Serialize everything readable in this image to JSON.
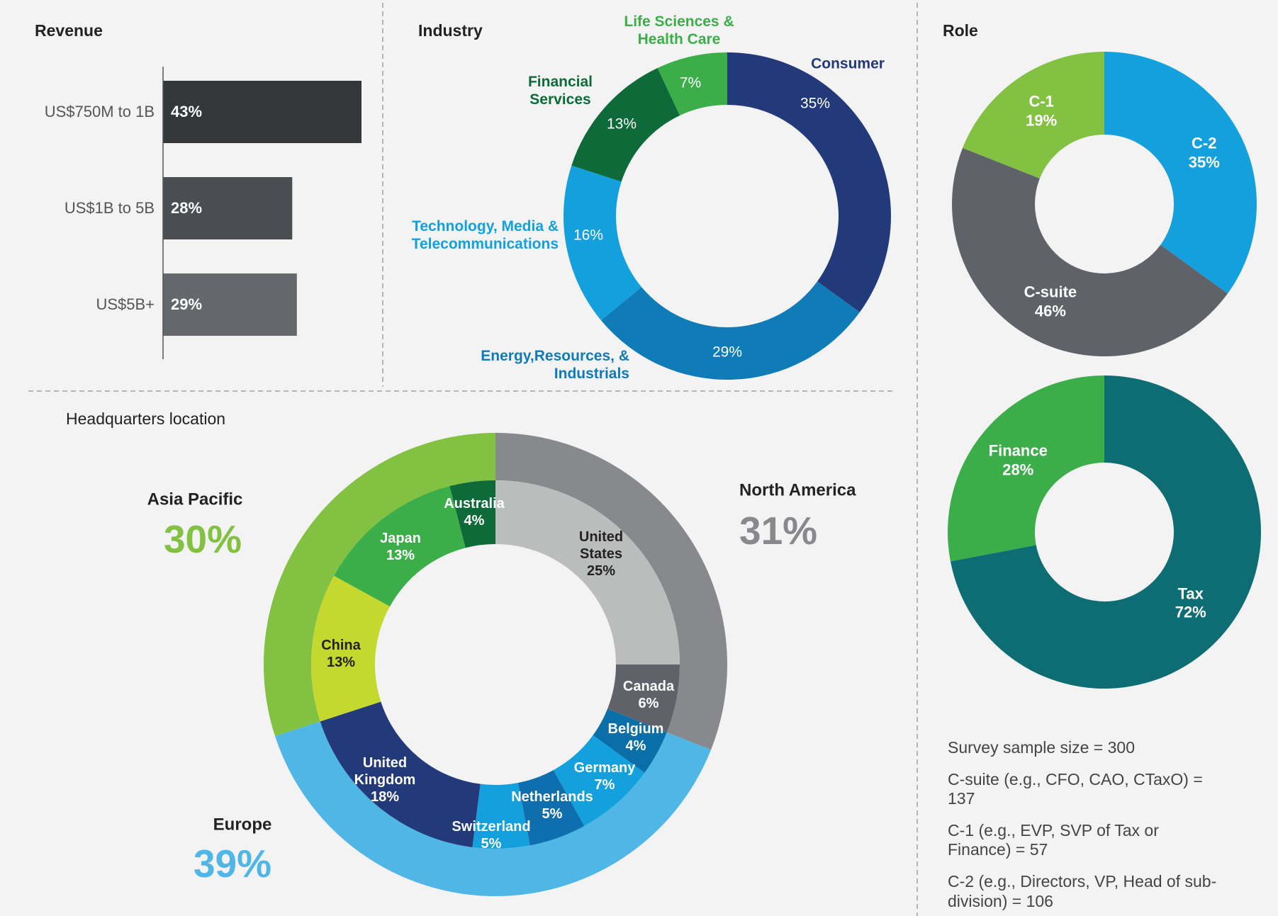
{
  "chart_data": [
    {
      "type": "bar",
      "orientation": "horizontal",
      "title": "Revenue",
      "categories": [
        "US$750M to 1B",
        "US$1B to 5B",
        "US$5B+"
      ],
      "values": [
        43,
        28,
        29
      ],
      "value_labels": [
        "43%",
        "28%",
        "29%"
      ],
      "colors": [
        "#33373a",
        "#4a4e52",
        "#64686d"
      ],
      "xlim": [
        0,
        45
      ]
    },
    {
      "type": "donut",
      "title": "Industry",
      "categories": [
        "Consumer",
        "Energy,Resources, & Industrials",
        "Technology, Media & Telecommunications",
        "Financial Services",
        "Life Sciences & Health Care"
      ],
      "values": [
        35,
        29,
        16,
        13,
        7
      ],
      "value_labels": [
        "35%",
        "29%",
        "16%",
        "13%",
        "7%"
      ],
      "colors": [
        "#233a7a",
        "#0f7bb7",
        "#14a0dc",
        "#0f6a3a",
        "#3cae49"
      ]
    },
    {
      "type": "donut",
      "title": "Role",
      "categories": [
        "C-2",
        "C-suite",
        "C-1"
      ],
      "values": [
        35,
        46,
        19
      ],
      "value_labels": [
        "35%",
        "46%",
        "19%"
      ],
      "colors": [
        "#14a0dc",
        "#5f6369",
        "#82c141"
      ]
    },
    {
      "type": "donut",
      "categories": [
        "Tax",
        "Finance"
      ],
      "values": [
        72,
        28
      ],
      "value_labels": [
        "72%",
        "28%"
      ],
      "colors": [
        "#0e6d73",
        "#3cae49"
      ]
    },
    {
      "type": "nested-donut",
      "title": "Headquarters location",
      "outer": {
        "categories": [
          "North America",
          "Europe",
          "Asia Pacific"
        ],
        "values": [
          31,
          39,
          30
        ],
        "value_labels": [
          "31%",
          "39%",
          "30%"
        ],
        "colors": [
          "#87898c",
          "#4fb6e6",
          "#82c141"
        ]
      },
      "inner": {
        "categories": [
          "United States",
          "Canada",
          "Belgium",
          "Germany",
          "Netherlands",
          "Switzerland",
          "United Kingdom",
          "China",
          "Japan",
          "Australia"
        ],
        "values": [
          25,
          6,
          4,
          7,
          5,
          5,
          18,
          13,
          13,
          4
        ],
        "value_labels": [
          "25%",
          "6%",
          "4%",
          "7%",
          "5%",
          "5%",
          "18%",
          "13%",
          "13%",
          "4%"
        ],
        "colors": [
          "#bbbcbc",
          "#5f6369",
          "#0a6fa8",
          "#14a0dc",
          "#0f6fae",
          "#14a0dc",
          "#233a7a",
          "#c4d82e",
          "#3cae49",
          "#0f6a3a"
        ]
      }
    }
  ],
  "notes": [
    "Survey sample size = 300",
    "C-suite (e.g., CFO, CAO, CTaxO) = 137",
    "C-1 (e.g., EVP, SVP of Tax or Finance) = 57",
    "C-2 (e.g., Directors, VP, Head of sub-division) = 106"
  ]
}
